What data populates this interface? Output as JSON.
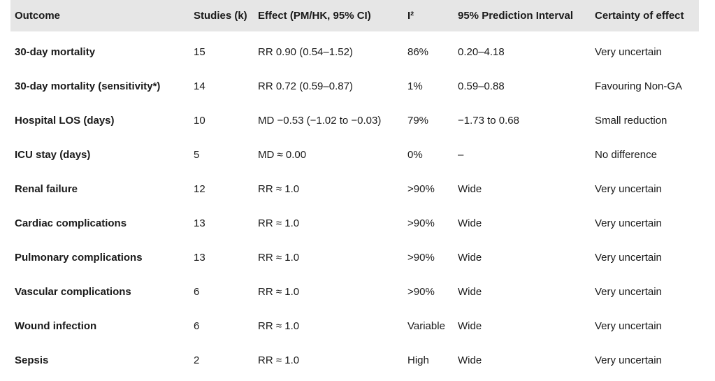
{
  "table": {
    "headers": [
      "Outcome",
      "Studies (k)",
      "Effect (PM/HK, 95% CI)",
      "I²",
      "95% Prediction Interval",
      "Certainty of effect"
    ],
    "rows": [
      [
        "30-day mortality",
        "15",
        "RR 0.90 (0.54–1.52)",
        "86%",
        "0.20–4.18",
        "Very uncertain"
      ],
      [
        "30-day mortality (sensitivity*)",
        "14",
        "RR 0.72 (0.59–0.87)",
        "1%",
        "0.59–0.88",
        "Favouring Non-GA"
      ],
      [
        "Hospital LOS (days)",
        "10",
        "MD −0.53 (−1.02 to −0.03)",
        "79%",
        "−1.73 to 0.68",
        "Small reduction"
      ],
      [
        "ICU stay (days)",
        "5",
        "MD ≈ 0.00",
        "0%",
        "–",
        "No difference"
      ],
      [
        "Renal failure",
        "12",
        "RR ≈ 1.0",
        ">90%",
        "Wide",
        "Very uncertain"
      ],
      [
        "Cardiac complications",
        "13",
        "RR ≈ 1.0",
        ">90%",
        "Wide",
        "Very uncertain"
      ],
      [
        "Pulmonary complications",
        "13",
        "RR ≈ 1.0",
        ">90%",
        "Wide",
        "Very uncertain"
      ],
      [
        "Vascular complications",
        "6",
        "RR ≈ 1.0",
        ">90%",
        "Wide",
        "Very uncertain"
      ],
      [
        "Wound infection",
        "6",
        "RR ≈ 1.0",
        "Variable",
        "Wide",
        "Very uncertain"
      ],
      [
        "Sepsis",
        "2",
        "RR ≈ 1.0",
        "High",
        "Wide",
        "Very uncertain"
      ]
    ]
  },
  "colors": {
    "header_background": "#e6e6e6",
    "text": "#1a1a1a"
  }
}
